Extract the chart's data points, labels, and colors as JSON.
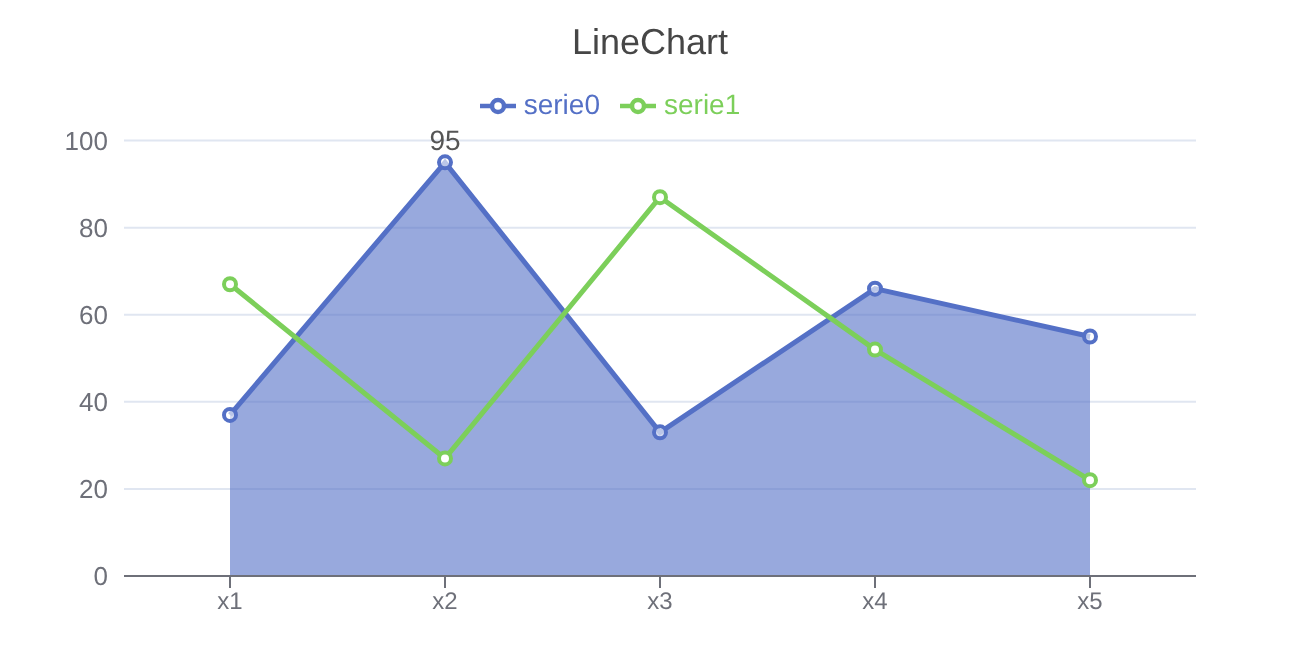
{
  "chart_data": {
    "type": "line",
    "title": "LineChart",
    "categories": [
      "x1",
      "x2",
      "x3",
      "x4",
      "x5"
    ],
    "series": [
      {
        "name": "serie0",
        "type": "area",
        "color": "#5470c6",
        "values": [
          37,
          95,
          33,
          66,
          55
        ]
      },
      {
        "name": "serie1",
        "color": "#7ccf5a",
        "values": [
          67,
          27,
          87,
          52,
          22
        ]
      }
    ],
    "ylim": [
      0,
      100
    ],
    "yticks": [
      0,
      20,
      40,
      60,
      80,
      100
    ],
    "grid": "y",
    "legend": "top",
    "marker": "circle",
    "annotations": [
      {
        "text": "95",
        "x": "x2",
        "y": 95
      }
    ]
  }
}
